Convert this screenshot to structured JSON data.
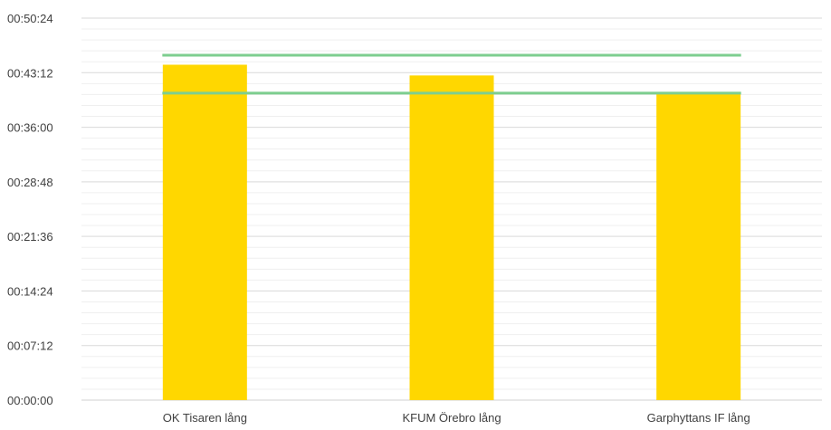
{
  "chart_data": {
    "type": "bar",
    "title": "",
    "xlabel": "",
    "ylabel": "",
    "categories": [
      "OK Tisaren lång",
      "KFUM Örebro lång",
      "Garphyttans IF lång"
    ],
    "series": [
      {
        "values": [
          "00:44:15",
          "00:42:50",
          "00:40:25"
        ],
        "color": "#FFD700"
      }
    ],
    "reference_lines": [
      {
        "value": "00:45:30",
        "color": "#7DCE8F"
      },
      {
        "value": "00:40:30",
        "color": "#7DCE8F"
      }
    ],
    "y_ticks": [
      "00:00:00",
      "00:07:12",
      "00:14:24",
      "00:21:36",
      "00:28:48",
      "00:36:00",
      "00:43:12",
      "00:50:24"
    ],
    "ylim": [
      "00:00:00",
      "00:50:24"
    ],
    "grid": true,
    "minor_grid": true,
    "legend": "none"
  }
}
